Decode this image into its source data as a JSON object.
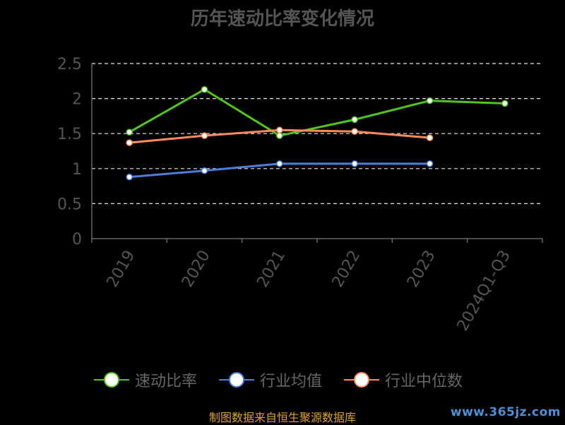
{
  "chart_data": {
    "type": "line",
    "title": "历年速动比率变化情况",
    "categories": [
      "2019",
      "2020",
      "2021",
      "2022",
      "2023",
      "2024Q1-Q3"
    ],
    "ylim": [
      0,
      2.5
    ],
    "yticks": [
      "0",
      "0.5",
      "1",
      "1.5",
      "2",
      "2.5"
    ],
    "grid": true,
    "legend_position": "bottom",
    "series": [
      {
        "name": "速动比率",
        "color": "#52c41a",
        "values": [
          1.52,
          2.13,
          1.47,
          1.7,
          1.97,
          1.93
        ]
      },
      {
        "name": "行业均值",
        "color": "#4a7fdc",
        "values": [
          0.88,
          0.97,
          1.07,
          1.07,
          1.07,
          null
        ]
      },
      {
        "name": "行业中位数",
        "color": "#ff8c5a",
        "values": [
          1.37,
          1.47,
          1.55,
          1.53,
          1.44,
          null
        ]
      }
    ]
  },
  "footer": {
    "source": "制图数据来自恒生聚源数据库",
    "watermark": "www.365jz.com"
  }
}
